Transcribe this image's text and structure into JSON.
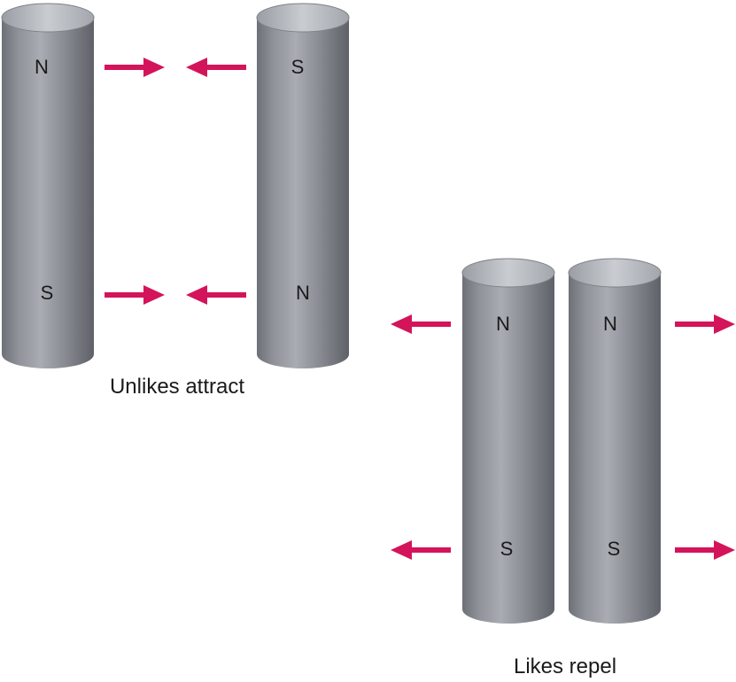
{
  "colors": {
    "arrow": "#d4145a",
    "magnet_body": "#8e9199",
    "magnet_shadow": "#5f6269",
    "magnet_highlight": "#b9bcc3",
    "magnet_top": "#c3c6cc"
  },
  "icons": {
    "magnet": "cylinder-magnet-icon",
    "force_arrow": "arrow-icon"
  },
  "unlikes": {
    "caption": "Unlikes attract",
    "left_magnet": {
      "top_pole": "N",
      "bottom_pole": "S"
    },
    "right_magnet": {
      "top_pole": "S",
      "bottom_pole": "N"
    }
  },
  "likes": {
    "caption": "Likes repel",
    "left_magnet": {
      "top_pole": "N",
      "bottom_pole": "S"
    },
    "right_magnet": {
      "top_pole": "N",
      "bottom_pole": "S"
    }
  }
}
